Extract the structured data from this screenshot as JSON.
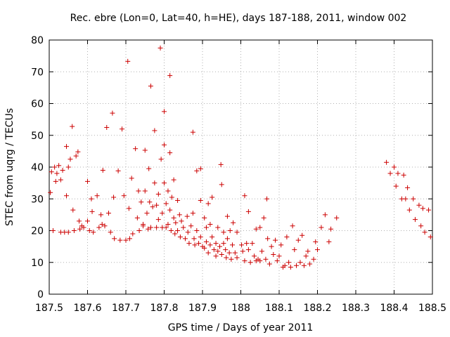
{
  "chart_data": {
    "type": "scatter",
    "title": "Rec. ebre (Lon=0, Lat=40, h=HE), days 187-188, 2011, window 002",
    "xlabel": "GPS time / Days of year 2011",
    "ylabel": "STEC from uqrg / TECUs",
    "xlim": [
      187.5,
      188.5
    ],
    "ylim": [
      0,
      80
    ],
    "xticks": [
      187.5,
      187.6,
      187.7,
      187.8,
      187.9,
      188,
      188.1,
      188.2,
      188.3,
      188.4,
      188.5
    ],
    "xtick_labels": [
      "187.5",
      "187.6",
      "187.7",
      "187.8",
      "187.9",
      "188",
      "188.1",
      "188.2",
      "188.3",
      "188.4",
      "188.5"
    ],
    "yticks": [
      0,
      10,
      20,
      30,
      40,
      50,
      60,
      70,
      80
    ],
    "ytick_labels": [
      "0",
      "10",
      "20",
      "30",
      "40",
      "50",
      "60",
      "70",
      "80"
    ],
    "grid": true,
    "marker": "+",
    "color": "#cc0000",
    "series": [
      {
        "points": [
          [
            187.503,
            32.0
          ],
          [
            187.506,
            38.5
          ],
          [
            187.51,
            20.0
          ],
          [
            187.514,
            40.0
          ],
          [
            187.517,
            35.5
          ],
          [
            187.52,
            38.0
          ],
          [
            187.525,
            40.5
          ],
          [
            187.53,
            19.5
          ],
          [
            187.53,
            36.0
          ],
          [
            187.535,
            39.0
          ],
          [
            187.54,
            19.5
          ],
          [
            187.545,
            46.5
          ],
          [
            187.545,
            31.0
          ],
          [
            187.55,
            40.0
          ],
          [
            187.55,
            19.5
          ],
          [
            187.555,
            42.5
          ],
          [
            187.56,
            52.8
          ],
          [
            187.562,
            26.5
          ],
          [
            187.565,
            20.0
          ],
          [
            187.57,
            43.5
          ],
          [
            187.575,
            44.8
          ],
          [
            187.578,
            23.0
          ],
          [
            187.58,
            20.5
          ],
          [
            187.585,
            21.5
          ],
          [
            187.59,
            21.0
          ],
          [
            187.6,
            35.5
          ],
          [
            187.6,
            23.0
          ],
          [
            187.605,
            20.0
          ],
          [
            187.61,
            30.0
          ],
          [
            187.612,
            26.0
          ],
          [
            187.615,
            19.5
          ],
          [
            187.625,
            31.0
          ],
          [
            187.63,
            21.0
          ],
          [
            187.635,
            25.0
          ],
          [
            187.638,
            22.0
          ],
          [
            187.64,
            39.0
          ],
          [
            187.645,
            21.5
          ],
          [
            187.65,
            52.5
          ],
          [
            187.655,
            25.5
          ],
          [
            187.66,
            19.5
          ],
          [
            187.665,
            57.0
          ],
          [
            187.668,
            30.5
          ],
          [
            187.67,
            17.5
          ],
          [
            187.68,
            38.8
          ],
          [
            187.685,
            17.0
          ],
          [
            187.69,
            52.0
          ],
          [
            187.695,
            31.0
          ],
          [
            187.7,
            17.0
          ],
          [
            187.705,
            73.3
          ],
          [
            187.708,
            27.0
          ],
          [
            187.71,
            17.5
          ],
          [
            187.715,
            36.5
          ],
          [
            187.718,
            19.0
          ],
          [
            187.725,
            45.8
          ],
          [
            187.73,
            24.0
          ],
          [
            187.733,
            32.5
          ],
          [
            187.735,
            20.0
          ],
          [
            187.74,
            29.0
          ],
          [
            187.745,
            21.5
          ],
          [
            187.745,
            22.0
          ],
          [
            187.75,
            45.3
          ],
          [
            187.75,
            32.5
          ],
          [
            187.755,
            25.5
          ],
          [
            187.758,
            20.5
          ],
          [
            187.76,
            39.5
          ],
          [
            187.762,
            29.0
          ],
          [
            187.765,
            65.5
          ],
          [
            187.765,
            21.0
          ],
          [
            187.77,
            27.5
          ],
          [
            187.775,
            51.5
          ],
          [
            187.775,
            35.0
          ],
          [
            187.78,
            28.0
          ],
          [
            187.78,
            21.0
          ],
          [
            187.785,
            31.5
          ],
          [
            187.785,
            23.5
          ],
          [
            187.79,
            77.5
          ],
          [
            187.792,
            42.5
          ],
          [
            187.795,
            25.5
          ],
          [
            187.795,
            21.0
          ],
          [
            187.8,
            57.5
          ],
          [
            187.8,
            47.0
          ],
          [
            187.8,
            35.0
          ],
          [
            187.805,
            28.5
          ],
          [
            187.805,
            21.0
          ],
          [
            187.81,
            32.5
          ],
          [
            187.81,
            22.0
          ],
          [
            187.815,
            68.8
          ],
          [
            187.815,
            44.5
          ],
          [
            187.815,
            26.5
          ],
          [
            187.818,
            20.0
          ],
          [
            187.82,
            30.5
          ],
          [
            187.825,
            36.0
          ],
          [
            187.825,
            24.0
          ],
          [
            187.828,
            19.0
          ],
          [
            187.83,
            22.5
          ],
          [
            187.835,
            29.5
          ],
          [
            187.835,
            20.0
          ],
          [
            187.84,
            25.0
          ],
          [
            187.842,
            18.0
          ],
          [
            187.845,
            23.0
          ],
          [
            187.85,
            21.0
          ],
          [
            187.855,
            17.5
          ],
          [
            187.86,
            24.5
          ],
          [
            187.862,
            19.5
          ],
          [
            187.865,
            16.0
          ],
          [
            187.87,
            21.5
          ],
          [
            187.875,
            51.0
          ],
          [
            187.875,
            25.5
          ],
          [
            187.878,
            17.5
          ],
          [
            187.88,
            15.5
          ],
          [
            187.885,
            38.8
          ],
          [
            187.885,
            20.0
          ],
          [
            187.89,
            16.0
          ],
          [
            187.895,
            39.5
          ],
          [
            187.895,
            29.5
          ],
          [
            187.895,
            18.0
          ],
          [
            187.9,
            15.0
          ],
          [
            187.905,
            24.0
          ],
          [
            187.905,
            14.5
          ],
          [
            187.91,
            21.0
          ],
          [
            187.91,
            16.5
          ],
          [
            187.915,
            28.5
          ],
          [
            187.915,
            13.0
          ],
          [
            187.92,
            22.0
          ],
          [
            187.92,
            15.5
          ],
          [
            187.925,
            30.5
          ],
          [
            187.925,
            18.0
          ],
          [
            187.93,
            14.0
          ],
          [
            187.935,
            12.0
          ],
          [
            187.935,
            16.0
          ],
          [
            187.94,
            21.0
          ],
          [
            187.94,
            13.5
          ],
          [
            187.945,
            15.0
          ],
          [
            187.948,
            40.8
          ],
          [
            187.95,
            34.5
          ],
          [
            187.95,
            12.5
          ],
          [
            187.955,
            19.5
          ],
          [
            187.955,
            16.0
          ],
          [
            187.96,
            14.0
          ],
          [
            187.962,
            11.5
          ],
          [
            187.965,
            24.5
          ],
          [
            187.965,
            17.5
          ],
          [
            187.97,
            13.0
          ],
          [
            187.972,
            20.0
          ],
          [
            187.975,
            11.0
          ],
          [
            187.978,
            15.5
          ],
          [
            187.98,
            22.5
          ],
          [
            187.985,
            13.0
          ],
          [
            187.99,
            19.5
          ],
          [
            187.99,
            11.5
          ],
          [
            188.002,
            15.5
          ],
          [
            188.005,
            13.5
          ],
          [
            188.01,
            31.0
          ],
          [
            188.01,
            10.5
          ],
          [
            188.015,
            16.0
          ],
          [
            188.02,
            26.0
          ],
          [
            188.02,
            14.0
          ],
          [
            188.025,
            10.0
          ],
          [
            188.03,
            16.0
          ],
          [
            188.035,
            12.0
          ],
          [
            188.04,
            20.5
          ],
          [
            188.04,
            10.5
          ],
          [
            188.045,
            11.0
          ],
          [
            188.05,
            21.0
          ],
          [
            188.05,
            10.5
          ],
          [
            188.055,
            13.5
          ],
          [
            188.06,
            24.0
          ],
          [
            188.065,
            11.0
          ],
          [
            188.068,
            30.0
          ],
          [
            188.07,
            17.5
          ],
          [
            188.075,
            9.5
          ],
          [
            188.08,
            15.0
          ],
          [
            188.085,
            12.5
          ],
          [
            188.09,
            17.0
          ],
          [
            188.095,
            10.5
          ],
          [
            188.1,
            12.0
          ],
          [
            188.105,
            15.5
          ],
          [
            188.11,
            8.5
          ],
          [
            188.115,
            9.0
          ],
          [
            188.12,
            18.0
          ],
          [
            188.125,
            10.0
          ],
          [
            188.13,
            8.5
          ],
          [
            188.135,
            21.5
          ],
          [
            188.14,
            14.0
          ],
          [
            188.145,
            9.0
          ],
          [
            188.15,
            17.0
          ],
          [
            188.155,
            10.0
          ],
          [
            188.16,
            18.5
          ],
          [
            188.165,
            9.0
          ],
          [
            188.17,
            12.0
          ],
          [
            188.175,
            13.5
          ],
          [
            188.18,
            9.5
          ],
          [
            188.19,
            11.0
          ],
          [
            188.195,
            16.5
          ],
          [
            188.2,
            14.0
          ],
          [
            188.21,
            21.0
          ],
          [
            188.22,
            25.0
          ],
          [
            188.23,
            16.5
          ],
          [
            188.235,
            20.5
          ],
          [
            188.25,
            24.0
          ],
          [
            188.38,
            41.5
          ],
          [
            188.39,
            38.0
          ],
          [
            188.4,
            40.0
          ],
          [
            188.405,
            34.0
          ],
          [
            188.41,
            38.0
          ],
          [
            188.42,
            30.0
          ],
          [
            188.425,
            37.5
          ],
          [
            188.43,
            30.0
          ],
          [
            188.435,
            33.5
          ],
          [
            188.44,
            26.5
          ],
          [
            188.45,
            30.0
          ],
          [
            188.455,
            23.5
          ],
          [
            188.465,
            28.0
          ],
          [
            188.47,
            21.5
          ],
          [
            188.475,
            27.0
          ],
          [
            188.48,
            19.5
          ],
          [
            188.49,
            26.5
          ],
          [
            188.495,
            18.0
          ]
        ]
      }
    ]
  }
}
